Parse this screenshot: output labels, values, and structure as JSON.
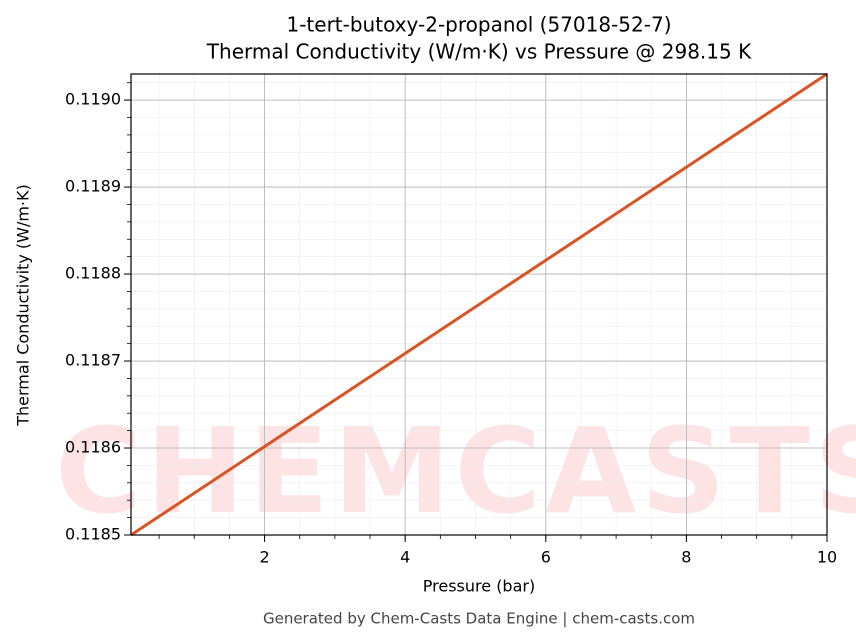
{
  "chart_data": {
    "type": "line",
    "title": "1-tert-butoxy-2-propanol (57018-52-7)",
    "subtitle": "Thermal Conductivity (W/m·K) vs Pressure @ 298.15 K",
    "x_label": "Pressure (bar)",
    "y_label": "Thermal Conductivity (W/m·K)",
    "footer": "Generated by Chem-Casts Data Engine | chem-casts.com",
    "watermark": "CHEMCASTS",
    "x": [
      0.1,
      10
    ],
    "series": [
      {
        "name": "Thermal Conductivity",
        "color": "#d95425",
        "values": [
          0.1185,
          0.11903
        ]
      }
    ],
    "xlim": [
      0.1,
      10
    ],
    "xticks": [
      2,
      4,
      6,
      8,
      10
    ],
    "ylim": [
      0.1185,
      0.11903
    ],
    "yticks": [
      0.1185,
      0.1186,
      0.1187,
      0.1188,
      0.1189,
      {
        "value": 0.119,
        "label": "0.1190"
      }
    ],
    "grid": true,
    "minor_grid": true
  }
}
